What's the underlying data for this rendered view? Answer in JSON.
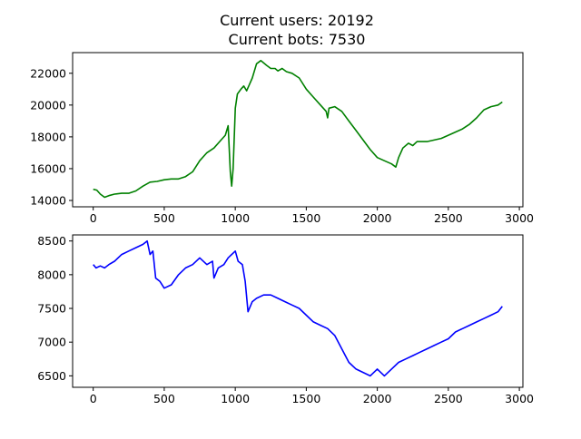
{
  "title_lines": [
    "Current users: 20192",
    "Current bots: 7530"
  ],
  "chart_data": [
    {
      "type": "line",
      "series": [
        {
          "color": "#008000",
          "points": [
            [
              0,
              14700
            ],
            [
              25,
              14650
            ],
            [
              50,
              14400
            ],
            [
              80,
              14200
            ],
            [
              110,
              14300
            ],
            [
              150,
              14400
            ],
            [
              200,
              14450
            ],
            [
              250,
              14450
            ],
            [
              300,
              14600
            ],
            [
              350,
              14900
            ],
            [
              400,
              15150
            ],
            [
              450,
              15200
            ],
            [
              500,
              15300
            ],
            [
              550,
              15350
            ],
            [
              600,
              15350
            ],
            [
              650,
              15500
            ],
            [
              700,
              15800
            ],
            [
              750,
              16500
            ],
            [
              800,
              17000
            ],
            [
              850,
              17300
            ],
            [
              900,
              17800
            ],
            [
              930,
              18100
            ],
            [
              950,
              18700
            ],
            [
              965,
              15800
            ],
            [
              975,
              14900
            ],
            [
              985,
              16000
            ],
            [
              1000,
              19800
            ],
            [
              1015,
              20700
            ],
            [
              1040,
              21000
            ],
            [
              1060,
              21200
            ],
            [
              1080,
              20900
            ],
            [
              1100,
              21300
            ],
            [
              1120,
              21700
            ],
            [
              1150,
              22600
            ],
            [
              1180,
              22800
            ],
            [
              1220,
              22500
            ],
            [
              1250,
              22300
            ],
            [
              1280,
              22300
            ],
            [
              1300,
              22150
            ],
            [
              1330,
              22300
            ],
            [
              1360,
              22100
            ],
            [
              1400,
              22000
            ],
            [
              1450,
              21700
            ],
            [
              1500,
              21000
            ],
            [
              1550,
              20500
            ],
            [
              1600,
              20000
            ],
            [
              1640,
              19600
            ],
            [
              1650,
              19200
            ],
            [
              1660,
              19800
            ],
            [
              1700,
              19900
            ],
            [
              1750,
              19600
            ],
            [
              1800,
              19000
            ],
            [
              1850,
              18400
            ],
            [
              1900,
              17800
            ],
            [
              1950,
              17200
            ],
            [
              2000,
              16700
            ],
            [
              2050,
              16500
            ],
            [
              2100,
              16300
            ],
            [
              2130,
              16100
            ],
            [
              2150,
              16700
            ],
            [
              2180,
              17300
            ],
            [
              2220,
              17600
            ],
            [
              2250,
              17450
            ],
            [
              2280,
              17700
            ],
            [
              2350,
              17700
            ],
            [
              2400,
              17800
            ],
            [
              2450,
              17900
            ],
            [
              2500,
              18100
            ],
            [
              2550,
              18300
            ],
            [
              2600,
              18500
            ],
            [
              2650,
              18800
            ],
            [
              2700,
              19200
            ],
            [
              2750,
              19700
            ],
            [
              2800,
              19900
            ],
            [
              2850,
              20000
            ],
            [
              2880,
              20192
            ]
          ]
        }
      ],
      "xlim": [
        -145,
        3025
      ],
      "ylim": [
        13600,
        23300
      ],
      "xticks": [
        0,
        500,
        1000,
        1500,
        2000,
        2500,
        3000
      ],
      "yticks": [
        14000,
        16000,
        18000,
        20000,
        22000
      ]
    },
    {
      "type": "line",
      "series": [
        {
          "color": "#0000ff",
          "points": [
            [
              0,
              8150
            ],
            [
              20,
              8100
            ],
            [
              50,
              8130
            ],
            [
              80,
              8100
            ],
            [
              110,
              8150
            ],
            [
              150,
              8200
            ],
            [
              200,
              8300
            ],
            [
              250,
              8350
            ],
            [
              300,
              8400
            ],
            [
              350,
              8450
            ],
            [
              380,
              8500
            ],
            [
              400,
              8300
            ],
            [
              420,
              8350
            ],
            [
              440,
              7950
            ],
            [
              470,
              7900
            ],
            [
              500,
              7800
            ],
            [
              550,
              7850
            ],
            [
              600,
              8000
            ],
            [
              650,
              8100
            ],
            [
              700,
              8150
            ],
            [
              750,
              8250
            ],
            [
              800,
              8150
            ],
            [
              840,
              8200
            ],
            [
              850,
              7950
            ],
            [
              880,
              8100
            ],
            [
              920,
              8150
            ],
            [
              950,
              8250
            ],
            [
              1000,
              8350
            ],
            [
              1020,
              8200
            ],
            [
              1050,
              8150
            ],
            [
              1070,
              7900
            ],
            [
              1090,
              7450
            ],
            [
              1120,
              7600
            ],
            [
              1150,
              7650
            ],
            [
              1200,
              7700
            ],
            [
              1250,
              7700
            ],
            [
              1300,
              7650
            ],
            [
              1350,
              7600
            ],
            [
              1400,
              7550
            ],
            [
              1450,
              7500
            ],
            [
              1500,
              7400
            ],
            [
              1550,
              7300
            ],
            [
              1600,
              7250
            ],
            [
              1650,
              7200
            ],
            [
              1700,
              7100
            ],
            [
              1750,
              6900
            ],
            [
              1800,
              6700
            ],
            [
              1850,
              6600
            ],
            [
              1900,
              6550
            ],
            [
              1950,
              6500
            ],
            [
              2000,
              6600
            ],
            [
              2050,
              6500
            ],
            [
              2100,
              6600
            ],
            [
              2150,
              6700
            ],
            [
              2200,
              6750
            ],
            [
              2250,
              6800
            ],
            [
              2300,
              6850
            ],
            [
              2350,
              6900
            ],
            [
              2400,
              6950
            ],
            [
              2450,
              7000
            ],
            [
              2500,
              7050
            ],
            [
              2550,
              7150
            ],
            [
              2600,
              7200
            ],
            [
              2650,
              7250
            ],
            [
              2700,
              7300
            ],
            [
              2750,
              7350
            ],
            [
              2800,
              7400
            ],
            [
              2850,
              7450
            ],
            [
              2880,
              7530
            ]
          ]
        }
      ],
      "xlim": [
        -145,
        3025
      ],
      "ylim": [
        6330,
        8590
      ],
      "xticks": [
        0,
        500,
        1000,
        1500,
        2000,
        2500,
        3000
      ],
      "yticks": [
        6500,
        7000,
        7500,
        8000,
        8500
      ]
    }
  ]
}
